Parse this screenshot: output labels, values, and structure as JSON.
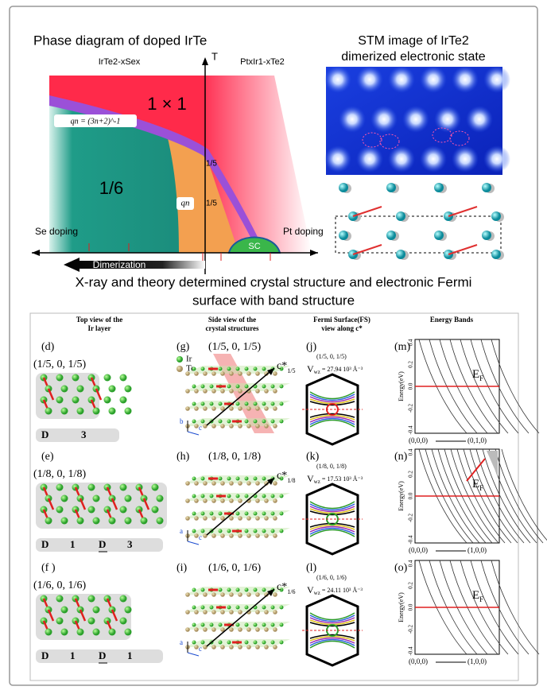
{
  "header": {
    "phase_title": "Phase diagram of doped IrTe",
    "stm_title": [
      "STM image of IrTe2",
      "dimerized electronic state"
    ]
  },
  "phase_diagram": {
    "t_axis": "T",
    "left_compound": "IrTe2-xSex",
    "right_compound": "PtxIr1-xTe2",
    "phase_1x1": "1 × 1",
    "qn_formula": "qn = (3n+2)^-1",
    "phase_1_6": "1/6",
    "phase_1_5_upper": "1/5",
    "phase_1_5_lower": "1/5",
    "qn": "qn",
    "se_doping": "Se doping",
    "pt_doping": "Pt doping",
    "sc": "SC",
    "dimerization": "Dimerization"
  },
  "section_title": [
    "X-ray and theory determined crystal structure and electronic Fermi",
    "surface with band structure"
  ],
  "columns": [
    [
      "Top view of the",
      "Ir layer"
    ],
    [
      "Side view of the",
      "crystal structures"
    ],
    [
      "Fermi Surface(FS)",
      "view along c*"
    ],
    [
      "Energy Bands"
    ]
  ],
  "legend": [
    "Ir",
    "Te"
  ],
  "shared": {
    "c_star": "c*",
    "v_symbol": "V",
    "v_sub": "wz",
    "ef": "E",
    "ef_sub": "F",
    "k_start": "(0,0,0)",
    "energy_label": "Energy(eV)",
    "energy_ticks": [
      "0.4",
      "0.2",
      "0.0",
      "-0.2",
      "-0.4"
    ]
  },
  "rows": [
    {
      "top_label": "(d)",
      "top_q": "(1/5, 0, 1/5)",
      "sequence": [
        "D",
        "3"
      ],
      "side_label": "(g)",
      "side_q": "(1/5, 0, 1/5)",
      "axes": [
        "b",
        "c"
      ],
      "c_sub": "1/5",
      "fs_label": "(j)",
      "fs_q": "(1/5, 0, 1/5)",
      "v_value": "= 27.94 10³ Å⁻³",
      "band_label": "(m)",
      "k_end": "(0,1,0)"
    },
    {
      "top_label": "(e)",
      "top_q": "(1/8, 0, 1/8)",
      "sequence": [
        "D",
        "1",
        "D",
        "3"
      ],
      "underline_index": 2,
      "side_label": "(h)",
      "side_q": "(1/8, 0, 1/8)",
      "axes": [
        "a",
        "c"
      ],
      "c_sub": "1/8",
      "fs_label": "(k)",
      "fs_q": "(1/8, 0, 1/8)",
      "v_value": "= 17.53 10³ Å⁻³",
      "band_label": "(n)",
      "k_end": "(1,0,0)"
    },
    {
      "top_label": "(f )",
      "top_q": "(1/6, 0, 1/6)",
      "sequence": [
        "D",
        "1",
        "D",
        "1"
      ],
      "underline_index": 2,
      "side_label": "(i)",
      "side_q": "(1/6, 0, 1/6)",
      "axes": [
        "a",
        "c"
      ],
      "c_sub": "1/6",
      "fs_label": "(l)",
      "fs_q": "(1/6, 0, 1/6)",
      "v_value": "= 24.11 10³ Å⁻³",
      "band_label": "(o)",
      "k_end": "(1,0,0)"
    }
  ]
}
